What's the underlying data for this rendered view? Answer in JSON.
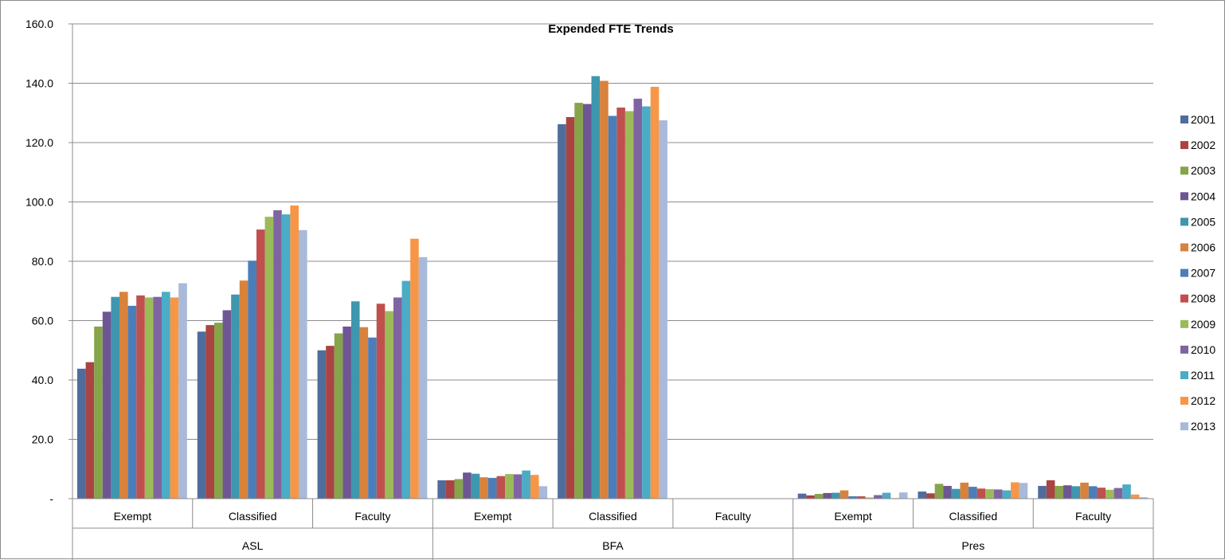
{
  "chart_data": {
    "type": "bar",
    "title": "Expended FTE Trends",
    "ylim": [
      0,
      160
    ],
    "y_ticks": [
      {
        "value": 0,
        "label": "-"
      },
      {
        "value": 20,
        "label": "20.0"
      },
      {
        "value": 40,
        "label": "40.0"
      },
      {
        "value": 60,
        "label": "60.0"
      },
      {
        "value": 80,
        "label": "80.0"
      },
      {
        "value": 100,
        "label": "100.0"
      },
      {
        "value": 120,
        "label": "120.0"
      },
      {
        "value": 140,
        "label": "140.0"
      },
      {
        "value": 160,
        "label": "160.0"
      }
    ],
    "grid": true,
    "legend_position": "right",
    "groups": [
      {
        "name": "ASL",
        "categories": [
          "Exempt",
          "Classified",
          "Faculty"
        ]
      },
      {
        "name": "BFA",
        "categories": [
          "Exempt",
          "Classified",
          "Faculty"
        ]
      },
      {
        "name": "Pres",
        "categories": [
          "Exempt",
          "Classified",
          "Faculty"
        ]
      }
    ],
    "series": [
      {
        "name": "2001",
        "color": "#4F6D9C",
        "values": [
          43.8,
          56.3,
          50.0,
          6.2,
          126.2,
          0,
          1.7,
          2.4,
          4.3
        ]
      },
      {
        "name": "2002",
        "color": "#A94442",
        "values": [
          46.0,
          58.5,
          51.5,
          6.2,
          128.6,
          0,
          1.1,
          1.8,
          6.2
        ]
      },
      {
        "name": "2003",
        "color": "#86A44A",
        "values": [
          58.0,
          59.3,
          55.7,
          6.6,
          133.4,
          0,
          1.6,
          5.0,
          4.3
        ]
      },
      {
        "name": "2004",
        "color": "#6E5594",
        "values": [
          63.0,
          63.5,
          58.0,
          8.8,
          133.0,
          0,
          1.9,
          4.3,
          4.5
        ]
      },
      {
        "name": "2005",
        "color": "#3E97AE",
        "values": [
          68.0,
          68.8,
          66.5,
          8.4,
          142.4,
          0,
          2.0,
          3.3,
          4.2
        ]
      },
      {
        "name": "2006",
        "color": "#D9823B",
        "values": [
          69.7,
          73.5,
          57.8,
          7.2,
          140.8,
          0,
          2.8,
          5.4,
          5.4
        ]
      },
      {
        "name": "2007",
        "color": "#4A7EBB",
        "values": [
          65.0,
          80.2,
          54.3,
          7.0,
          129.0,
          0,
          0.8,
          4.0,
          4.2
        ]
      },
      {
        "name": "2008",
        "color": "#C0504D",
        "values": [
          68.5,
          90.7,
          65.7,
          7.6,
          131.8,
          0,
          0.8,
          3.4,
          3.7
        ]
      },
      {
        "name": "2009",
        "color": "#9BBB59",
        "values": [
          67.8,
          95.0,
          63.2,
          8.3,
          130.6,
          0,
          0.4,
          3.2,
          3.0
        ]
      },
      {
        "name": "2010",
        "color": "#8064A2",
        "values": [
          68.0,
          97.2,
          67.8,
          8.2,
          134.8,
          0,
          1.2,
          3.1,
          3.6
        ]
      },
      {
        "name": "2011",
        "color": "#4BACC6",
        "values": [
          69.7,
          95.8,
          73.4,
          9.5,
          132.2,
          0,
          2.0,
          2.8,
          4.8
        ]
      },
      {
        "name": "2012",
        "color": "#F79646",
        "values": [
          67.8,
          98.8,
          87.6,
          8.0,
          138.8,
          0,
          0.2,
          5.5,
          1.4
        ]
      },
      {
        "name": "2013",
        "color": "#A9B9D9",
        "values": [
          72.6,
          90.5,
          81.4,
          4.2,
          127.5,
          0,
          2.1,
          5.3,
          0.5
        ]
      }
    ]
  }
}
